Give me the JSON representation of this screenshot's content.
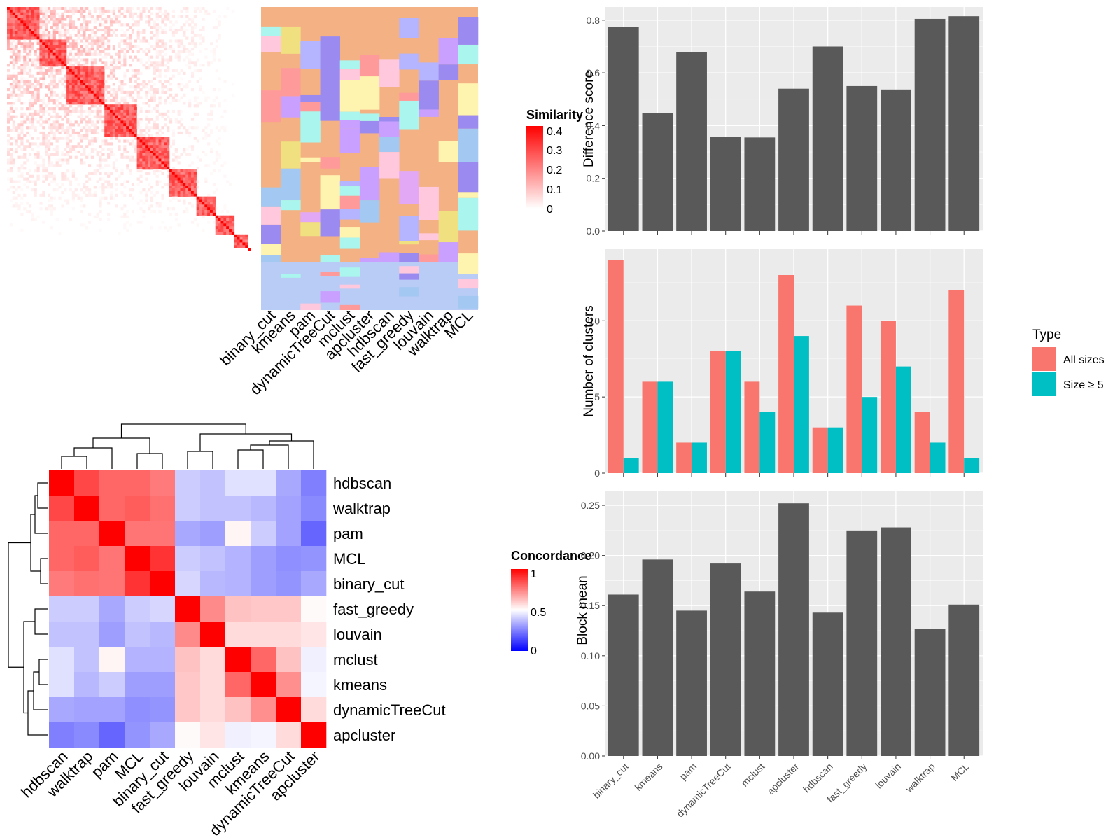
{
  "chart_data": [
    {
      "type": "heatmap",
      "panel": "similarity",
      "legend_title": "Similarity",
      "legend_ticks": [
        "0.4",
        "0.3",
        "0.2",
        "0.1",
        "0"
      ],
      "legend_range": [
        0,
        0.4
      ],
      "colors": {
        "low": "#ffffff",
        "high": "#ff0000"
      }
    },
    {
      "type": "heatmap",
      "panel": "cluster-assignments",
      "columns": [
        "binary_cut",
        "kmeans",
        "pam",
        "dynamicTreeCut",
        "mclust",
        "apcluster",
        "hdbscan",
        "fast_greedy",
        "louvain",
        "walktrap",
        "MCL"
      ]
    },
    {
      "type": "heatmap",
      "panel": "concordance",
      "legend_title": "Concordance",
      "legend_ticks": [
        "1",
        "0.5",
        "0"
      ],
      "legend_range": [
        0,
        1
      ],
      "colors": {
        "low": "#0000ff",
        "mid": "#ffffff",
        "high": "#ff0000"
      },
      "rows": [
        "hdbscan",
        "walktrap",
        "pam",
        "MCL",
        "binary_cut",
        "fast_greedy",
        "louvain",
        "mclust",
        "kmeans",
        "dynamicTreeCut",
        "apcluster"
      ],
      "columns": [
        "hdbscan",
        "walktrap",
        "pam",
        "MCL",
        "binary_cut",
        "fast_greedy",
        "louvain",
        "mclust",
        "kmeans",
        "dynamicTreeCut",
        "apcluster"
      ],
      "values": [
        [
          1.0,
          0.86,
          0.8,
          0.8,
          0.76,
          0.4,
          0.38,
          0.44,
          0.44,
          0.33,
          0.25
        ],
        [
          0.86,
          1.0,
          0.8,
          0.82,
          0.78,
          0.4,
          0.38,
          0.38,
          0.36,
          0.32,
          0.27
        ],
        [
          0.8,
          0.8,
          1.0,
          0.77,
          0.77,
          0.33,
          0.31,
          0.52,
          0.4,
          0.32,
          0.2
        ],
        [
          0.8,
          0.82,
          0.77,
          1.0,
          0.9,
          0.4,
          0.38,
          0.35,
          0.31,
          0.28,
          0.29
        ],
        [
          0.76,
          0.78,
          0.77,
          0.9,
          1.0,
          0.42,
          0.36,
          0.35,
          0.31,
          0.29,
          0.33
        ],
        [
          0.4,
          0.4,
          0.33,
          0.4,
          0.42,
          1.0,
          0.73,
          0.62,
          0.61,
          0.61,
          0.51
        ],
        [
          0.38,
          0.38,
          0.31,
          0.38,
          0.36,
          0.73,
          1.0,
          0.57,
          0.57,
          0.57,
          0.55
        ],
        [
          0.44,
          0.38,
          0.52,
          0.35,
          0.35,
          0.62,
          0.57,
          1.0,
          0.8,
          0.62,
          0.47
        ],
        [
          0.44,
          0.36,
          0.4,
          0.31,
          0.31,
          0.61,
          0.57,
          0.8,
          1.0,
          0.72,
          0.48
        ],
        [
          0.33,
          0.32,
          0.32,
          0.28,
          0.29,
          0.61,
          0.57,
          0.62,
          0.72,
          1.0,
          0.57
        ],
        [
          0.25,
          0.27,
          0.2,
          0.29,
          0.33,
          0.51,
          0.55,
          0.47,
          0.48,
          0.57,
          1.0
        ]
      ]
    },
    {
      "type": "bar",
      "panel": "difference-score",
      "categories": [
        "binary_cut",
        "kmeans",
        "pam",
        "dynamicTreeCut",
        "mclust",
        "apcluster",
        "hdbscan",
        "fast_greedy",
        "louvain",
        "walktrap",
        "MCL"
      ],
      "values": [
        0.775,
        0.448,
        0.68,
        0.358,
        0.355,
        0.54,
        0.7,
        0.55,
        0.537,
        0.805,
        0.815
      ],
      "xlabel": "",
      "ylabel": "Difference score",
      "ylim": [
        0,
        0.85
      ],
      "yticks": [
        "0.0",
        "0.2",
        "0.4",
        "0.6",
        "0.8"
      ],
      "grid": true
    },
    {
      "type": "bar",
      "panel": "number-of-clusters",
      "categories": [
        "binary_cut",
        "kmeans",
        "pam",
        "dynamicTreeCut",
        "mclust",
        "apcluster",
        "hdbscan",
        "fast_greedy",
        "louvain",
        "walktrap",
        "MCL"
      ],
      "series": [
        {
          "name": "All sizes",
          "color": "#f8766d",
          "values": [
            14,
            6,
            2,
            8,
            6,
            13,
            3,
            11,
            10,
            4,
            12
          ]
        },
        {
          "name": "Size ≥ 5",
          "color": "#00bfc4",
          "values": [
            1,
            6,
            2,
            8,
            4,
            9,
            3,
            5,
            7,
            2,
            1
          ]
        }
      ],
      "xlabel": "",
      "ylabel": "Number of clusters",
      "ylim": [
        0,
        14.7
      ],
      "yticks": [
        "0",
        "5",
        "10"
      ],
      "legend_title": "Type",
      "legend_position": "right",
      "grid": true
    },
    {
      "type": "bar",
      "panel": "block-mean",
      "categories": [
        "binary_cut",
        "kmeans",
        "pam",
        "dynamicTreeCut",
        "mclust",
        "apcluster",
        "hdbscan",
        "fast_greedy",
        "louvain",
        "walktrap",
        "MCL"
      ],
      "values": [
        0.161,
        0.196,
        0.145,
        0.192,
        0.164,
        0.252,
        0.143,
        0.225,
        0.228,
        0.127,
        0.151
      ],
      "xlabel": "",
      "ylabel": "Block mean",
      "ylim": [
        0,
        0.264
      ],
      "yticks": [
        "0.00",
        "0.05",
        "0.10",
        "0.15",
        "0.20",
        "0.25"
      ],
      "grid": true
    }
  ]
}
